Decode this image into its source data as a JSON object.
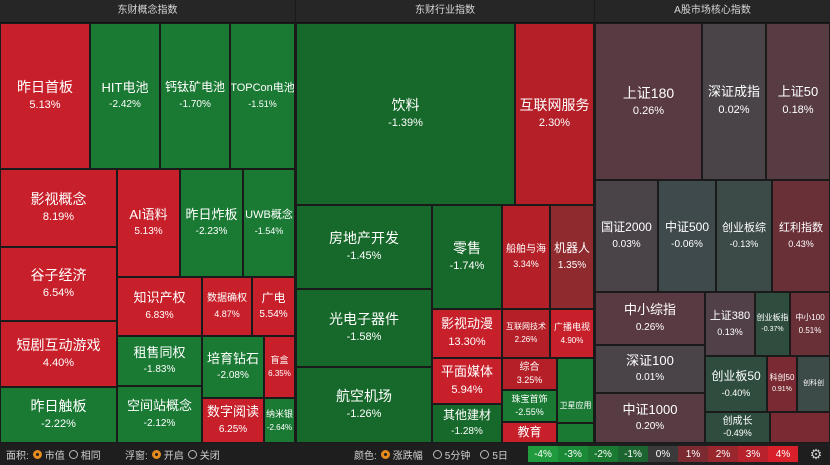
{
  "panels": [
    {
      "title": "东财概念指数"
    },
    {
      "title": "东财行业指数"
    },
    {
      "title": "A股市场核心指数"
    }
  ],
  "tiles": [
    {
      "name": "昨日首板",
      "value": "5.13%",
      "color": "#c8202a"
    },
    {
      "name": "HIT电池",
      "value": "-2.42%",
      "color": "#1a7a34"
    },
    {
      "name": "钙钛矿电池",
      "value": "-1.70%",
      "color": "#1a7a34"
    },
    {
      "name": "TOPCon电池",
      "value": "-1.51%",
      "color": "#1a7a34"
    },
    {
      "name": "影视概念",
      "value": "8.19%",
      "color": "#c8202a"
    },
    {
      "name": "AI语料",
      "value": "5.13%",
      "color": "#c8202a"
    },
    {
      "name": "昨日炸板",
      "value": "-2.23%",
      "color": "#1a7a34"
    },
    {
      "name": "UWB概念",
      "value": "-1.54%",
      "color": "#1a7a34"
    },
    {
      "name": "谷子经济",
      "value": "6.54%",
      "color": "#c8202a"
    },
    {
      "name": "知识产权",
      "value": "6.83%",
      "color": "#c8202a"
    },
    {
      "name": "数据确权",
      "value": "4.87%",
      "color": "#c8202a"
    },
    {
      "name": "广电",
      "value": "5.54%",
      "color": "#c8202a"
    },
    {
      "name": "短剧互动游戏",
      "value": "4.40%",
      "color": "#c8202a"
    },
    {
      "name": "租售同权",
      "value": "-1.83%",
      "color": "#1a7a34"
    },
    {
      "name": "培育钻石",
      "value": "-2.08%",
      "color": "#1a7a34"
    },
    {
      "name": "盲盒",
      "value": "6.35%",
      "color": "#c8202a"
    },
    {
      "name": "昨日触板",
      "value": "-2.22%",
      "color": "#1a7a34"
    },
    {
      "name": "空间站概念",
      "value": "-2.12%",
      "color": "#1a7a34"
    },
    {
      "name": "数字阅读",
      "value": "6.25%",
      "color": "#c8202a"
    },
    {
      "name": "纳米银",
      "value": "-2.64%",
      "color": "#1a7a34"
    },
    {
      "name": "饮料",
      "value": "-1.39%",
      "color": "#17692b"
    },
    {
      "name": "互联网服务",
      "value": "2.30%",
      "color": "#b52028"
    },
    {
      "name": "房地产开发",
      "value": "-1.45%",
      "color": "#17692b"
    },
    {
      "name": "零售",
      "value": "-1.74%",
      "color": "#17692b"
    },
    {
      "name": "船舶与海",
      "value": "3.34%",
      "color": "#b52028"
    },
    {
      "name": "机器人",
      "value": "1.35%",
      "color": "#8f2a2e"
    },
    {
      "name": "光电子器件",
      "value": "-1.58%",
      "color": "#17692b"
    },
    {
      "name": "影视动漫",
      "value": "13.30%",
      "color": "#c8202a"
    },
    {
      "name": "互联网技术",
      "value": "2.26%",
      "color": "#b52028"
    },
    {
      "name": "广播电视",
      "value": "4.90%",
      "color": "#c8202a"
    },
    {
      "name": "平面媒体",
      "value": "5.94%",
      "color": "#c8202a"
    },
    {
      "name": "综合",
      "value": "3.25%",
      "color": "#b52028"
    },
    {
      "name": "航空机场",
      "value": "-1.26%",
      "color": "#17692b"
    },
    {
      "name": "珠宝首饰",
      "value": "-2.55%",
      "color": "#1a7a34"
    },
    {
      "name": "其他建材",
      "value": "-1.28%",
      "color": "#17692b"
    },
    {
      "name": "卫星应用",
      "value": "",
      "color": "#1a7a34"
    },
    {
      "name": "教育",
      "value": "",
      "color": "#c8202a"
    },
    {
      "name": "上证180",
      "value": "0.26%",
      "color": "#5a3a42"
    },
    {
      "name": "深证成指",
      "value": "0.02%",
      "color": "#4a4448"
    },
    {
      "name": "上证50",
      "value": "0.18%",
      "color": "#573c44"
    },
    {
      "name": "国证2000",
      "value": "0.03%",
      "color": "#4a4448"
    },
    {
      "name": "中证500",
      "value": "-0.06%",
      "color": "#3f4a4c"
    },
    {
      "name": "创业板综",
      "value": "-0.13%",
      "color": "#3c4a48"
    },
    {
      "name": "红利指数",
      "value": "0.43%",
      "color": "#6a3038"
    },
    {
      "name": "中小综指",
      "value": "0.26%",
      "color": "#5a3a42"
    },
    {
      "name": "上证380",
      "value": "0.13%",
      "color": "#514048"
    },
    {
      "name": "创业板指",
      "value": "-0.37%",
      "color": "#2f4d3f"
    },
    {
      "name": "中小100",
      "value": "0.51%",
      "color": "#6a3038"
    },
    {
      "name": "深证100",
      "value": "0.01%",
      "color": "#4a4448"
    },
    {
      "name": "创业板50",
      "value": "-0.40%",
      "color": "#2f4d3f"
    },
    {
      "name": "科创50",
      "value": "0.91%",
      "color": "#7a2a32"
    },
    {
      "name": "创科创",
      "value": "",
      "color": "#3c4a48"
    },
    {
      "name": "中证1000",
      "value": "0.20%",
      "color": "#573c44"
    },
    {
      "name": "创成长",
      "value": "-0.49%",
      "color": "#2f4d3f"
    }
  ],
  "bottom_bar": {
    "area_label": "面积:",
    "area_options": [
      "市值",
      "相同"
    ],
    "float_label": "浮窗:",
    "float_options": [
      "开启",
      "关闭"
    ],
    "color_label": "颜色:",
    "color_options": [
      "涨跌幅",
      "5分钟",
      "5日"
    ],
    "legend": [
      {
        "label": "-4%",
        "color": "#1f9a3c"
      },
      {
        "label": "-3%",
        "color": "#1a8a36"
      },
      {
        "label": "-2%",
        "color": "#1a7a32"
      },
      {
        "label": "-1%",
        "color": "#1c6530"
      },
      {
        "label": "0%",
        "color": "#3a3a3a"
      },
      {
        "label": "1%",
        "color": "#7a2a30"
      },
      {
        "label": "2%",
        "color": "#9a262e"
      },
      {
        "label": "3%",
        "color": "#b8222c"
      },
      {
        "label": "4%",
        "color": "#d8202a"
      }
    ],
    "settings_icon": "gear-icon"
  }
}
